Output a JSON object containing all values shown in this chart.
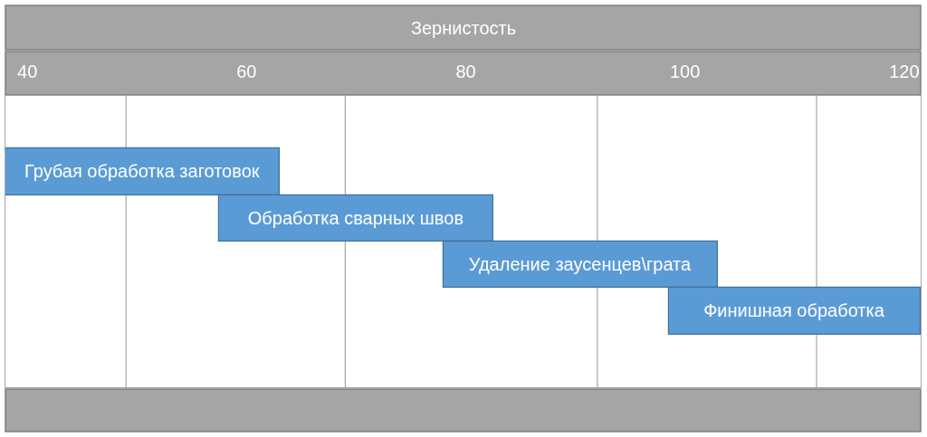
{
  "chart_data": {
    "type": "bar",
    "orientation": "horizontal",
    "title": "Зернистость",
    "categories": [
      "Грубая обработка заготовок",
      "Обработка сварных швов",
      "Удаление заусенцев\\грата",
      "Финишная обработка"
    ],
    "base": [
      38,
      57.5,
      78,
      98.5
    ],
    "values": [
      25,
      25,
      25,
      23
    ],
    "color": "#5b9bd5",
    "xlim": [
      38,
      121.5
    ],
    "xticks": [
      40,
      60,
      80,
      100,
      120
    ],
    "tick_labels": "x",
    "ref_lines": [
      {
        "axis": "x",
        "value": 49,
        "color": "#a6a6a6"
      },
      {
        "axis": "x",
        "value": 69,
        "color": "#a6a6a6"
      },
      {
        "axis": "x",
        "value": 92,
        "color": "#a6a6a6"
      },
      {
        "axis": "x",
        "value": 112,
        "color": "#a6a6a6"
      }
    ]
  }
}
